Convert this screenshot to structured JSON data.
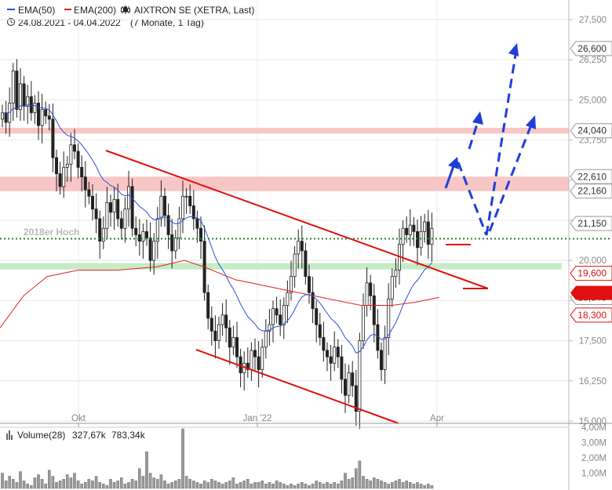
{
  "header": {
    "legend": [
      {
        "name": "EMA(50)",
        "color": "#2b4fd8",
        "icon": "blue-line-icon"
      },
      {
        "name": "EMA(200)",
        "color": "#e02020",
        "icon": "red-line-icon"
      },
      {
        "name": "AIXTRON SE (XETRA, Last)",
        "color": "#222222",
        "icon": "candlestick-icon"
      }
    ],
    "date_range": "24.08.2021 - 04.04.2022",
    "period": "(7 Monate, 1 Tag)"
  },
  "chart_data": [
    {
      "type": "candlestick",
      "title": "AIXTRON SE (XETRA, Last)",
      "x_ticks": [
        "Okt",
        "Jan '22",
        "Apr"
      ],
      "y_ticks": [
        "27,500",
        "26,250",
        "25,000",
        "23,750",
        "22,500",
        "21,250",
        "20,000",
        "18,750",
        "17,500",
        "16,250",
        "15,000"
      ],
      "ylim": [
        15.0,
        28.0
      ],
      "grid": true,
      "series": [
        {
          "name": "EMA(50)",
          "color": "#2b4fd8"
        },
        {
          "name": "EMA(200)",
          "color": "#e02020"
        }
      ],
      "annotation": "2018er Hoch",
      "price_levels": [
        {
          "label": "26,600",
          "value": 26.6,
          "style": "white"
        },
        {
          "label": "24,040",
          "value": 24.04,
          "style": "white"
        },
        {
          "label": "22,610",
          "value": 22.61,
          "style": "white"
        },
        {
          "label": "22,160",
          "value": 22.16,
          "style": "white"
        },
        {
          "label": "21,150",
          "value": 21.15,
          "style": "white"
        },
        {
          "label": "19,600",
          "value": 19.6,
          "style": "red-outline"
        },
        {
          "label": "18,845",
          "value": 18.845,
          "style": "white"
        },
        {
          "label": "18,300",
          "value": 18.3,
          "style": "red-outline"
        }
      ],
      "resistance_bands": [
        [
          23.95,
          24.13
        ],
        [
          22.16,
          22.61
        ]
      ],
      "support_band": [
        19.72,
        19.92
      ],
      "hidden_label_partial": "19,755"
    },
    {
      "type": "bar",
      "title": "Volume(28)",
      "values_text": [
        "327,67k",
        "783,34k"
      ],
      "value_colors": [
        "#222222",
        "#d9a400"
      ],
      "y_ticks": [
        "4,00M",
        "3,00M",
        "2,00M",
        "1,00M"
      ],
      "ylim": [
        0,
        4.0
      ]
    }
  ]
}
